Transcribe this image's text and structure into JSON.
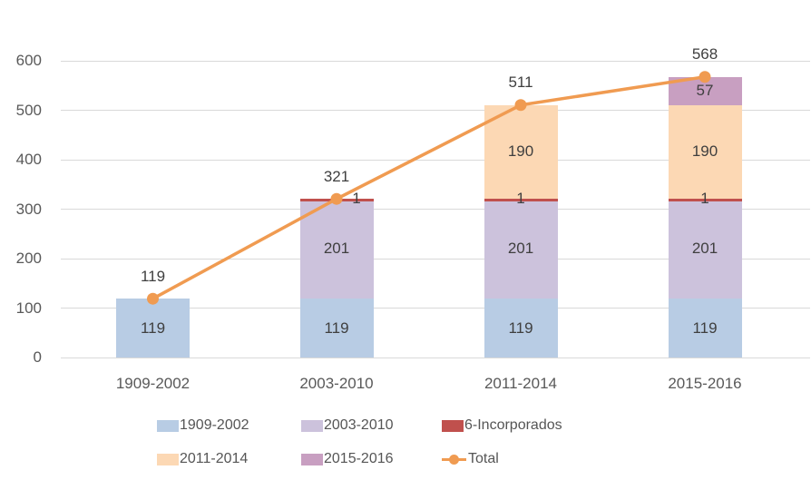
{
  "chart_data": {
    "type": "bar",
    "subtype": "stacked-bars-with-total-line",
    "categories": [
      "1909-2002",
      "2003-2010",
      "2011-2014",
      "2015-2016"
    ],
    "series": [
      {
        "name": "1909-2002",
        "color": "#b8cce4",
        "values": [
          119,
          119,
          119,
          119
        ]
      },
      {
        "name": "2003-2010",
        "color": "#ccc2dc",
        "values": [
          null,
          201,
          201,
          201
        ]
      },
      {
        "name": "6-Incorporados",
        "color": "#c0504d",
        "values": [
          null,
          1,
          1,
          1
        ]
      },
      {
        "name": "2011-2014",
        "color": "#fcd8b4",
        "values": [
          null,
          null,
          190,
          190
        ]
      },
      {
        "name": "2015-2016",
        "color": "#c89fc1",
        "values": [
          null,
          null,
          null,
          57
        ]
      }
    ],
    "line_series": {
      "name": "Total",
      "color": "#f09b51",
      "values": [
        119,
        321,
        511,
        568
      ]
    },
    "title": "",
    "xlabel": "",
    "ylabel": "",
    "ylim": [
      0,
      600
    ],
    "yticks": [
      0,
      100,
      200,
      300,
      400,
      500,
      600
    ],
    "grid": true,
    "legend_position": "bottom",
    "legend_rows": [
      [
        "1909-2002",
        "2003-2010",
        "6-Incorporados"
      ],
      [
        "2011-2014",
        "2015-2016",
        "Total"
      ]
    ]
  },
  "colors": {
    "background": "#ffffff",
    "gridline": "#d9d9d9",
    "axis_text": "#595959",
    "data_label_text": "#3f3f3f",
    "legend_text": "#555555"
  }
}
